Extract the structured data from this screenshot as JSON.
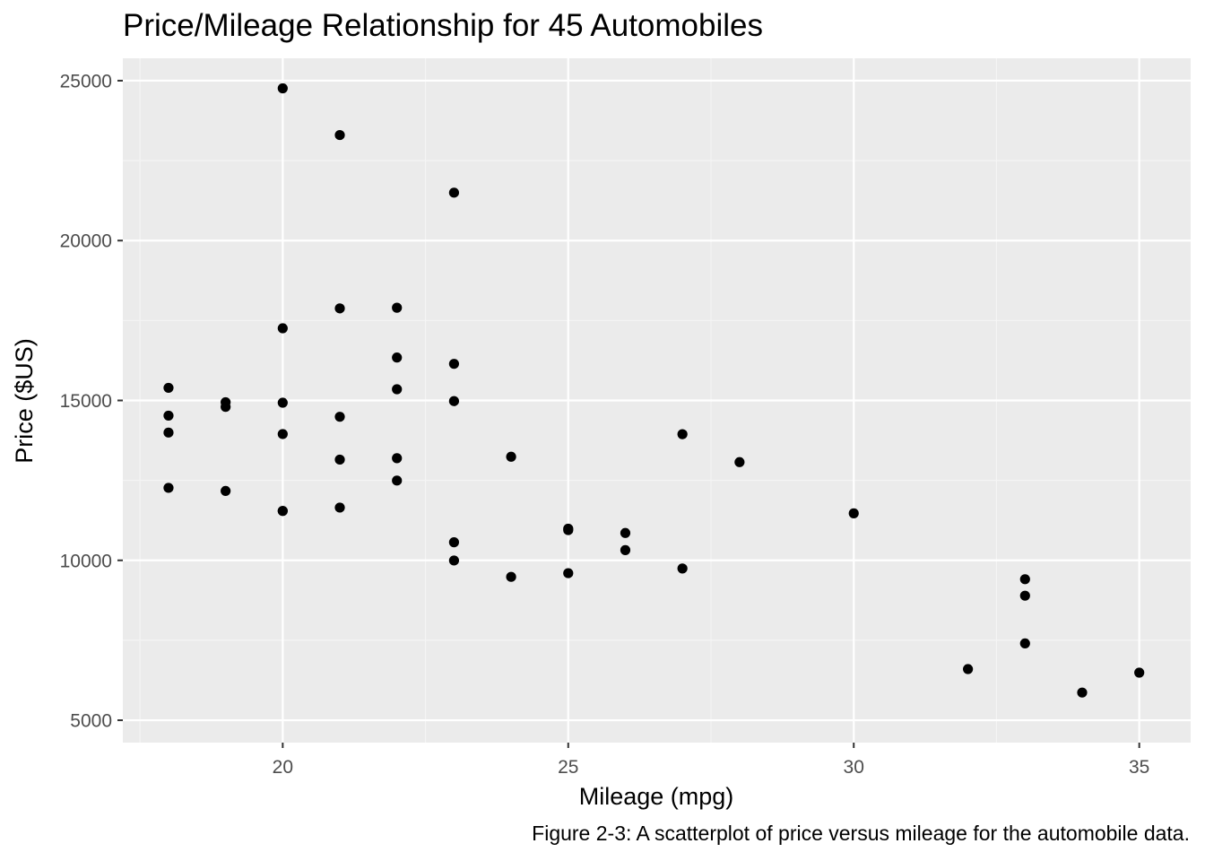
{
  "chart_data": {
    "type": "scatter",
    "title": "Price/Mileage Relationship for 45 Automobiles",
    "xlabel": "Mileage (mpg)",
    "ylabel": "Price ($US)",
    "caption": "Figure 2-3: A scatterplot of price versus mileage for the automobile data.",
    "xlim": [
      17.2,
      35.9
    ],
    "ylim": [
      4300,
      25700
    ],
    "x_ticks": [
      20,
      25,
      30,
      35
    ],
    "x_tick_labels": [
      "20",
      "25",
      "30",
      "35"
    ],
    "y_ticks": [
      5000,
      10000,
      15000,
      20000,
      25000
    ],
    "y_tick_labels": [
      "5000",
      "10000",
      "15000",
      "20000",
      "25000"
    ],
    "grid": true,
    "legend": "none",
    "colors": {
      "panel_background": "#ebebeb",
      "grid_major": "#ffffff",
      "grid_minor": "#f5f5f5",
      "point": "#000000",
      "tick_label": "#4d4d4d",
      "tick_mark": "#333333"
    },
    "series": [
      {
        "x": [
          18,
          18,
          18,
          18,
          19,
          19,
          19,
          20,
          20,
          20,
          20,
          20,
          20,
          21,
          21,
          21,
          21,
          21,
          22,
          22,
          22,
          22,
          22,
          23,
          23,
          23,
          23,
          23,
          24,
          24,
          25,
          25,
          25,
          26,
          26,
          27,
          27,
          28,
          30,
          32,
          33,
          33,
          33,
          34,
          35
        ],
        "y": [
          15395,
          14525,
          13995,
          12267,
          14944,
          14799,
          12170,
          24760,
          17257,
          14929,
          13949,
          11545,
          11545,
          23300,
          17879,
          14490,
          13150,
          11650,
          17899,
          16342,
          15350,
          13195,
          12495,
          21498,
          16145,
          14980,
          10565,
          9995,
          13240,
          9483,
          10989,
          10945,
          9599,
          10855,
          10320,
          13945,
          9745,
          13071,
          11470,
          6599,
          9410,
          8895,
          7402,
          5866,
          6488
        ]
      }
    ]
  }
}
